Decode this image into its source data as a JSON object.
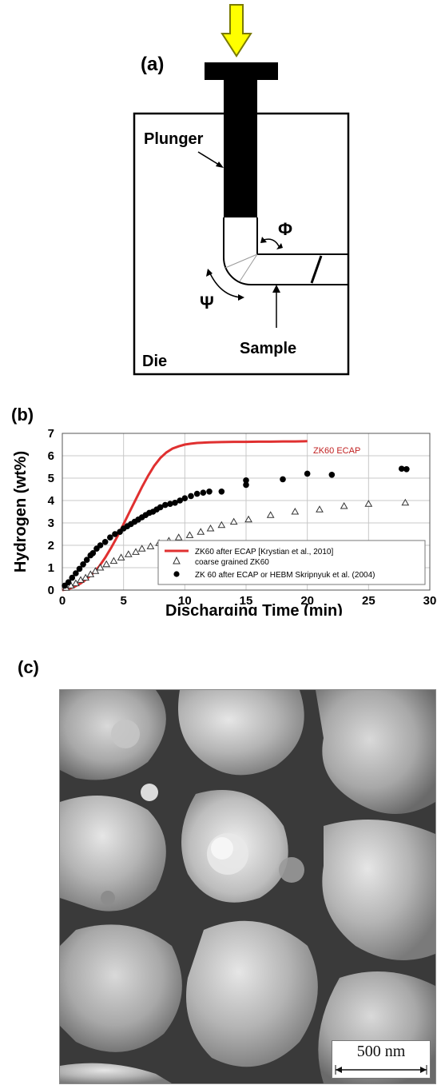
{
  "panel_a": {
    "label": "(a)",
    "plunger": "Plunger",
    "phi": "Φ",
    "psi": "Ψ",
    "sample": "Sample",
    "die": "Die",
    "colors": {
      "arrow_fill": "#ffff00",
      "arrow_stroke": "#7a7a00",
      "plunger": "#000000"
    }
  },
  "panel_b": {
    "label": "(b)",
    "curve_label": "ZK60 ECAP",
    "legend": [
      "ZK60 after ECAP [Krystian et al., 2010]",
      "coarse grained ZK60",
      "ZK 60 after ECAP or HEBM Skripnyuk et al. (2004)"
    ]
  },
  "chart_data": {
    "type": "line",
    "title": "",
    "xlabel": "Discharging Time (min)",
    "ylabel": "Hydrogen (wt%)",
    "xlim": [
      0,
      30
    ],
    "ylim": [
      0,
      7
    ],
    "x_ticks": [
      0,
      5,
      10,
      15,
      20,
      25,
      30
    ],
    "y_ticks": [
      0,
      1,
      2,
      3,
      4,
      5,
      6,
      7
    ],
    "grid": true,
    "legend_position": "bottom-right",
    "series": [
      {
        "name": "ZK60 after ECAP [Krystian et al., 2010]",
        "style": "line",
        "color": "#e03030",
        "x": [
          0,
          0.5,
          1,
          1.5,
          2,
          2.5,
          3,
          3.5,
          4,
          4.5,
          5,
          5.5,
          6,
          6.5,
          7,
          7.5,
          8,
          8.5,
          9,
          9.5,
          10,
          10.5,
          11,
          12,
          13,
          14,
          15,
          16,
          17,
          18,
          19,
          20
        ],
        "y": [
          0,
          0.05,
          0.15,
          0.3,
          0.5,
          0.75,
          1.05,
          1.45,
          1.9,
          2.4,
          2.95,
          3.5,
          4.05,
          4.6,
          5.1,
          5.55,
          5.9,
          6.15,
          6.32,
          6.42,
          6.5,
          6.54,
          6.57,
          6.6,
          6.61,
          6.62,
          6.62,
          6.63,
          6.63,
          6.64,
          6.64,
          6.65
        ]
      },
      {
        "name": "coarse grained ZK60",
        "style": "open-triangle",
        "color": "#333333",
        "x": [
          0.3,
          0.7,
          1.1,
          1.5,
          1.9,
          2.3,
          2.7,
          3.1,
          3.6,
          4.2,
          4.8,
          5.4,
          6.0,
          6.5,
          7.2,
          7.9,
          8.7,
          9.5,
          10.4,
          11.3,
          12.1,
          13.0,
          14.0,
          15.2,
          17.0,
          19.0,
          21.0,
          23.0,
          25.0,
          28.0
        ],
        "y": [
          0.1,
          0.2,
          0.3,
          0.45,
          0.55,
          0.7,
          0.85,
          1.0,
          1.15,
          1.3,
          1.45,
          1.6,
          1.7,
          1.85,
          1.95,
          2.1,
          2.2,
          2.35,
          2.45,
          2.6,
          2.75,
          2.9,
          3.05,
          3.15,
          3.35,
          3.5,
          3.6,
          3.75,
          3.85,
          3.9
        ]
      },
      {
        "name": "ZK 60 after ECAP or HEBM Skripnyuk et al. (2004)",
        "style": "filled-circle",
        "color": "#000000",
        "x": [
          0.2,
          0.5,
          0.8,
          1.1,
          1.4,
          1.7,
          2.0,
          2.3,
          2.5,
          2.8,
          3.1,
          3.5,
          3.9,
          4.3,
          4.7,
          5.0,
          5.3,
          5.6,
          5.9,
          6.2,
          6.5,
          6.8,
          7.1,
          7.4,
          7.7,
          8.0,
          8.4,
          8.8,
          9.2,
          9.6,
          10.0,
          10.5,
          11.0,
          11.5,
          12.0,
          13.0,
          15.0,
          15.0,
          18.0,
          20.0,
          22.0,
          27.7,
          28.1
        ],
        "y": [
          0.2,
          0.35,
          0.55,
          0.75,
          0.95,
          1.15,
          1.35,
          1.55,
          1.65,
          1.85,
          2.0,
          2.15,
          2.35,
          2.5,
          2.6,
          2.75,
          2.85,
          2.95,
          3.05,
          3.15,
          3.25,
          3.35,
          3.45,
          3.5,
          3.6,
          3.7,
          3.8,
          3.85,
          3.9,
          4.0,
          4.1,
          4.2,
          4.3,
          4.35,
          4.4,
          4.4,
          4.7,
          4.9,
          4.95,
          5.2,
          5.15,
          5.42,
          5.4
        ]
      }
    ]
  },
  "panel_c": {
    "label": "(c)",
    "scale_bar": "500 nm"
  }
}
